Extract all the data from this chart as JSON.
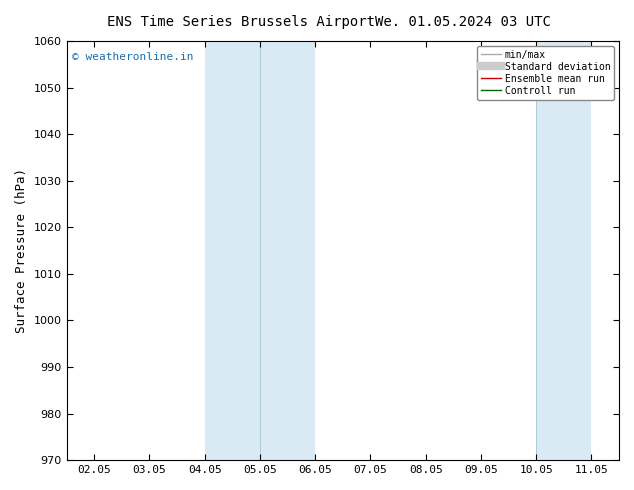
{
  "title": "ENS Time Series Brussels Airport",
  "title2": "We. 01.05.2024 03 UTC",
  "ylabel": "Surface Pressure (hPa)",
  "ylim": [
    970,
    1060
  ],
  "yticks": [
    970,
    980,
    990,
    1000,
    1010,
    1020,
    1030,
    1040,
    1050,
    1060
  ],
  "xlabels": [
    "02.05",
    "03.05",
    "04.05",
    "05.05",
    "06.05",
    "07.05",
    "08.05",
    "09.05",
    "10.05",
    "11.05"
  ],
  "xvalues": [
    0,
    1,
    2,
    3,
    4,
    5,
    6,
    7,
    8,
    9
  ],
  "xlim": [
    -0.5,
    9.5
  ],
  "shade_regions": [
    {
      "xmin": 2,
      "xmax": 3,
      "color": "#daeaf5"
    },
    {
      "xmin": 3,
      "xmax": 4,
      "color": "#daeaf5"
    },
    {
      "xmin": 8,
      "xmax": 9,
      "color": "#daeaf5"
    }
  ],
  "shade_dividers": [
    3,
    8
  ],
  "watermark": "© weatheronline.in",
  "watermark_color": "#1a6faf",
  "background_color": "#ffffff",
  "legend_items": [
    {
      "label": "min/max",
      "color": "#aaaaaa",
      "lw": 1.0,
      "type": "line"
    },
    {
      "label": "Standard deviation",
      "color": "#cccccc",
      "lw": 6,
      "type": "line"
    },
    {
      "label": "Ensemble mean run",
      "color": "#cc0000",
      "lw": 1.0,
      "type": "line"
    },
    {
      "label": "Controll run",
      "color": "#006600",
      "lw": 1.0,
      "type": "line"
    }
  ],
  "fig_width": 6.34,
  "fig_height": 4.9,
  "dpi": 100,
  "title_fontsize": 10,
  "tick_fontsize": 8,
  "ylabel_fontsize": 9
}
